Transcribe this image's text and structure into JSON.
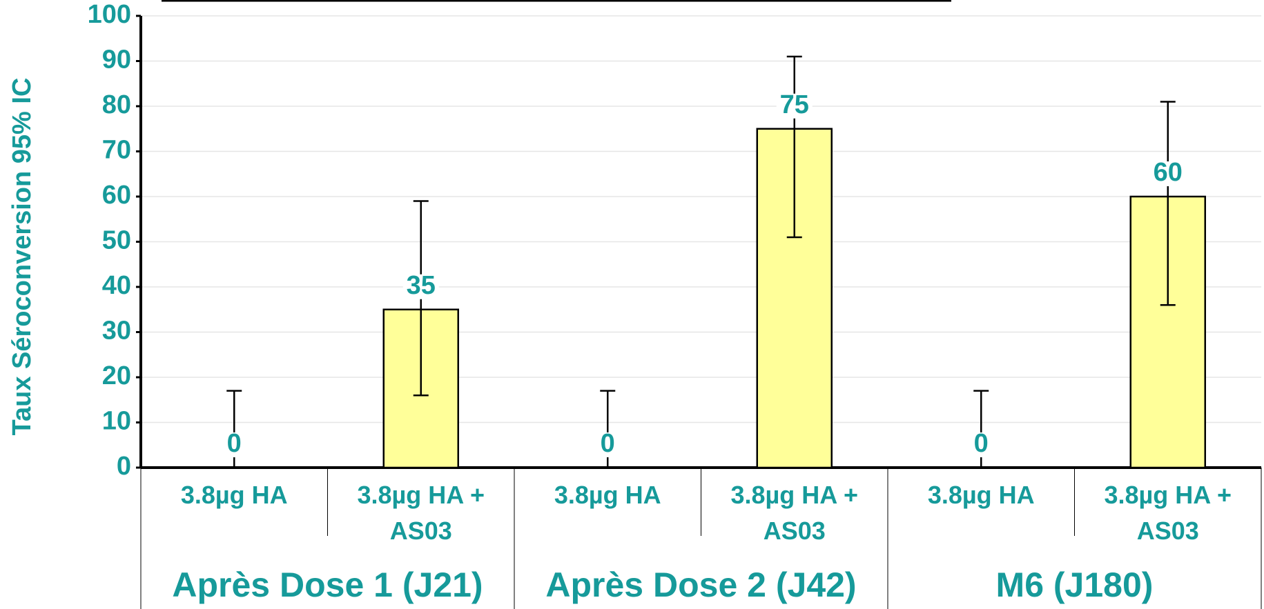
{
  "chart_data": {
    "type": "bar",
    "ylabel": "Taux Séroconversion 95% IC",
    "categories": [
      "3.8µg HA",
      "3.8µg HA +\nAS03",
      "3.8µg HA",
      "3.8µg HA +\nAS03",
      "3.8µg HA",
      "3.8µg HA +\nAS03"
    ],
    "groups": [
      "Après Dose 1 (J21)",
      "Après Dose 2 (J42)",
      "M6 (J180)"
    ],
    "values": [
      0,
      35,
      0,
      75,
      0,
      60
    ],
    "ci_low": [
      0,
      16,
      0,
      51,
      0,
      36
    ],
    "ci_high": [
      17,
      59,
      17,
      91,
      17,
      81
    ],
    "color": "#ffff99",
    "ylim": [
      0,
      100
    ],
    "yticks": [
      0,
      10,
      20,
      30,
      40,
      50,
      60,
      70,
      80,
      90,
      100
    ],
    "grid": true
  }
}
